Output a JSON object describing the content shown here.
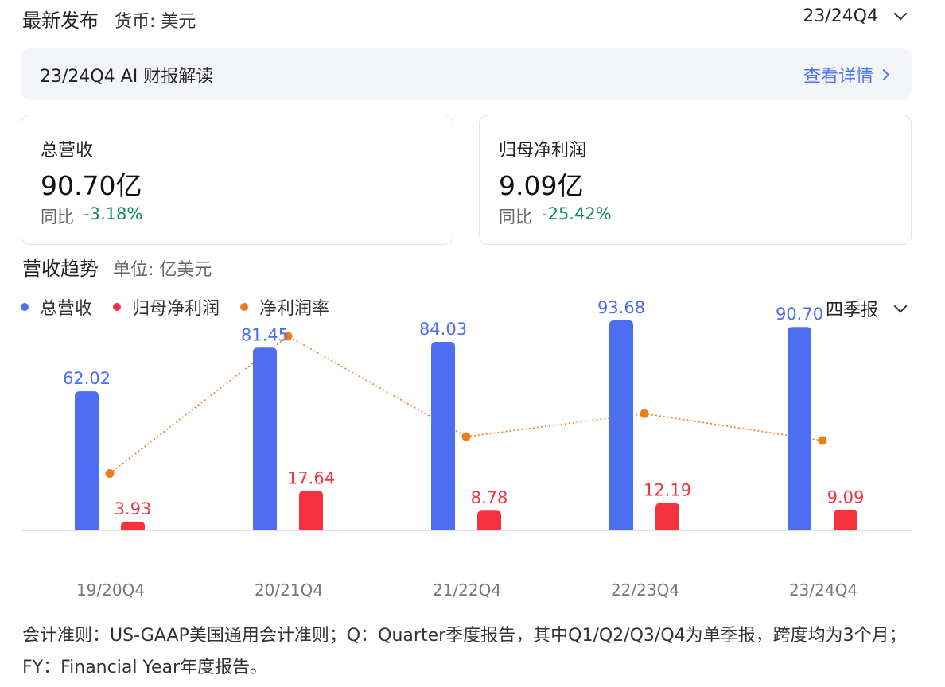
{
  "header": {
    "title": "最新发布",
    "currency": "货币: 美元",
    "period": "23/24Q4"
  },
  "ai_banner": {
    "title": "23/24Q4 AI 财报解读",
    "link": "查看详情"
  },
  "cards": [
    {
      "label": "总营收",
      "value": "90.70亿",
      "yoy_label": "同比",
      "yoy_value": "-3.18%"
    },
    {
      "label": "归母净利润",
      "value": "9.09亿",
      "yoy_label": "同比",
      "yoy_value": "-25.42%"
    }
  ],
  "trend": {
    "title": "营收趋势",
    "unit": "单位: 亿美元",
    "frequency": "四季报"
  },
  "colors": {
    "revenue": "#4d6ef0",
    "net_profit": "#f5333f",
    "net_margin": "#f07b1a",
    "positive": "#178a5a",
    "link": "#4d73f0"
  },
  "chart_data": {
    "type": "bar",
    "categories": [
      "19/20Q4",
      "20/21Q4",
      "21/22Q4",
      "22/23Q4",
      "23/24Q4"
    ],
    "series": [
      {
        "name": "总营收",
        "type": "bar",
        "values": [
          62.02,
          81.45,
          84.03,
          93.68,
          90.7
        ],
        "labels": [
          "62.02",
          "81.45",
          "84.03",
          "93.68",
          "90.70"
        ]
      },
      {
        "name": "归母净利润",
        "type": "bar",
        "values": [
          3.93,
          17.64,
          8.78,
          12.19,
          9.09
        ],
        "labels": [
          "3.93",
          "17.64",
          "8.78",
          "12.19",
          "9.09"
        ]
      },
      {
        "name": "净利润率",
        "type": "line",
        "values": [
          6.34,
          21.66,
          10.45,
          13.01,
          10.02
        ]
      }
    ],
    "ylim": [
      0,
      100
    ],
    "margin_ylim": [
      0,
      25
    ],
    "grid": false,
    "legend": "top-left"
  },
  "footnote": "会计准则：US-GAAP美国通用会计准则；Q：Quarter季度报告，其中Q1/Q2/Q3/Q4为单季报，跨度均为3个月；FY：Financial Year年度报告。"
}
